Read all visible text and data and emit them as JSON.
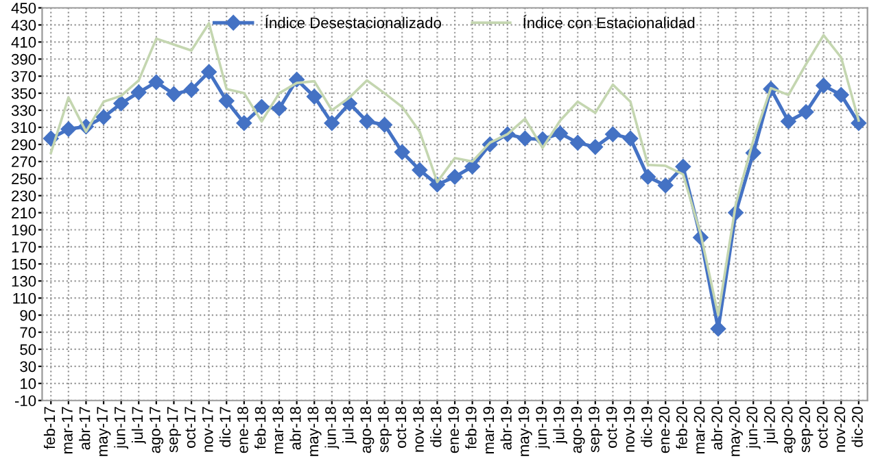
{
  "chart_data": {
    "type": "line",
    "categories": [
      "feb-17",
      "mar-17",
      "abr-17",
      "may-17",
      "jun-17",
      "jul-17",
      "ago-17",
      "sep-17",
      "oct-17",
      "nov-17",
      "dic-17",
      "ene-18",
      "feb-18",
      "mar-18",
      "abr-18",
      "may-18",
      "jun-18",
      "jul-18",
      "ago-18",
      "sep-18",
      "oct-18",
      "nov-18",
      "dic-18",
      "ene-19",
      "feb-19",
      "mar-19",
      "abr-19",
      "may-19",
      "jun-19",
      "jul-19",
      "ago-19",
      "sep-19",
      "oct-19",
      "nov-19",
      "dic-19",
      "ene-20",
      "feb-20",
      "mar-20",
      "abr-20",
      "may-20",
      "jun-20",
      "jul-20",
      "ago-20",
      "sep-20",
      "oct-20",
      "nov-20",
      "dic-20"
    ],
    "series": [
      {
        "name": "Índice Desestacionalizado",
        "color": "#4472c4",
        "marker": "diamond",
        "values": [
          297,
          308,
          311,
          322,
          338,
          351,
          363,
          349,
          354,
          375,
          341,
          315,
          334,
          332,
          366,
          346,
          315,
          338,
          317,
          313,
          281,
          260,
          243,
          252,
          264,
          290,
          302,
          297,
          296,
          303,
          292,
          287,
          302,
          297,
          252,
          242,
          264,
          181,
          74,
          210,
          280,
          355,
          317,
          328,
          359,
          348,
          315
        ]
      },
      {
        "name": "Índice con Estacionalidad",
        "color": "#c4d6b0",
        "marker": "none",
        "values": [
          280,
          345,
          305,
          340,
          347,
          365,
          414,
          407,
          400,
          432,
          355,
          350,
          317,
          350,
          362,
          364,
          330,
          345,
          365,
          350,
          334,
          305,
          246,
          274,
          270,
          292,
          302,
          320,
          286,
          318,
          340,
          327,
          360,
          340,
          266,
          265,
          255,
          185,
          90,
          220,
          295,
          356,
          348,
          384,
          418,
          392,
          318
        ]
      }
    ],
    "ylim": [
      -10,
      450
    ],
    "yticks": [
      -10,
      10,
      30,
      50,
      70,
      90,
      110,
      130,
      150,
      170,
      190,
      210,
      230,
      250,
      270,
      290,
      310,
      330,
      350,
      370,
      390,
      410,
      430,
      450
    ],
    "grid": true,
    "legend": "top",
    "line_style": "solid"
  }
}
